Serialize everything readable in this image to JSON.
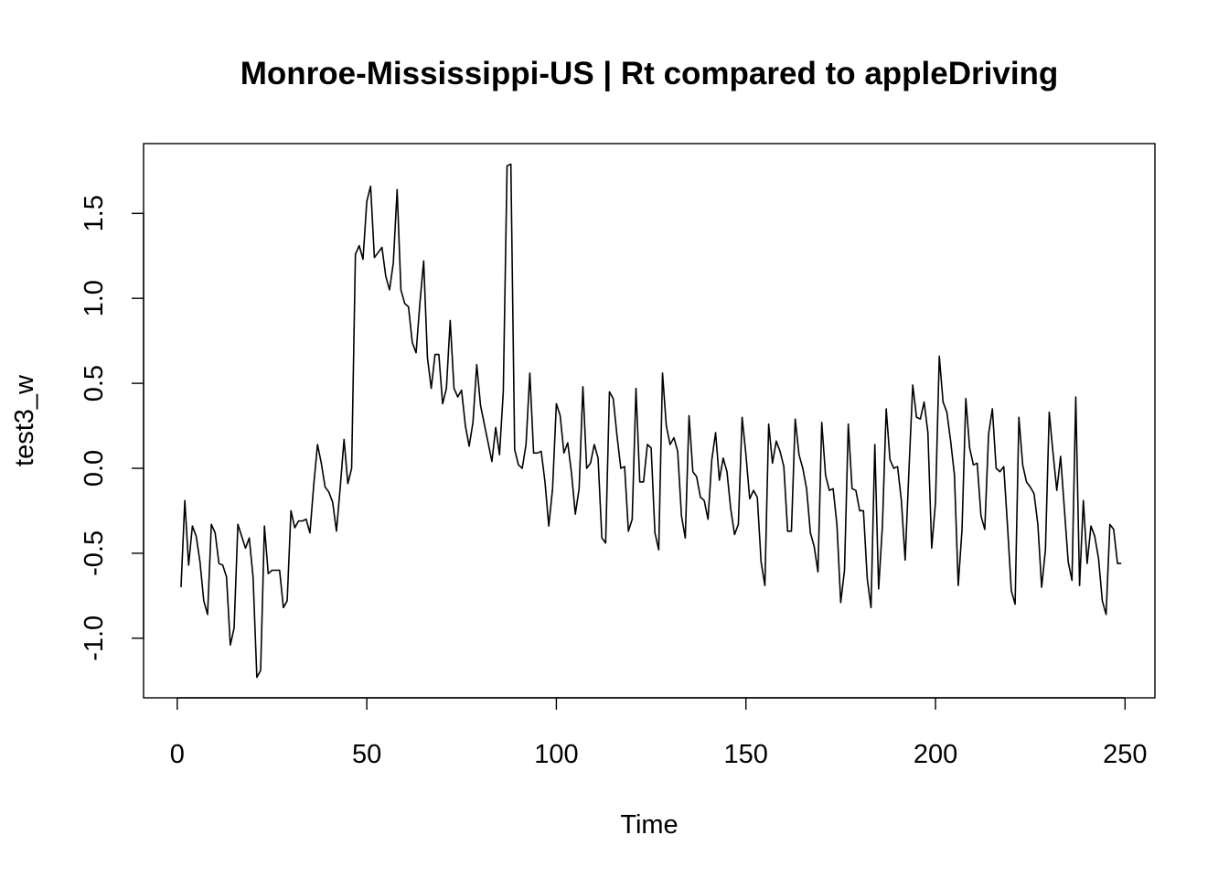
{
  "chart_data": {
    "type": "line",
    "title": "Monroe-Mississippi-US | Rt compared to appleDriving",
    "xlabel": "Time",
    "ylabel": "test3_w",
    "xlim": [
      1,
      248
    ],
    "ylim": [
      -1.23,
      1.79
    ],
    "x_ticks": [
      0,
      50,
      100,
      150,
      200,
      250
    ],
    "y_ticks": [
      -1.0,
      -0.5,
      0.0,
      0.5,
      1.0,
      1.5
    ],
    "x_tick_labels": [
      "0",
      "50",
      "100",
      "150",
      "200",
      "250"
    ],
    "y_tick_labels": [
      "-1.0",
      "-0.5",
      "0.0",
      "0.5",
      "1.0",
      "1.5"
    ],
    "grid": false,
    "series": [
      {
        "x_start": 1,
        "values": [
          -0.7,
          -0.19,
          -0.57,
          -0.34,
          -0.4,
          -0.55,
          -0.78,
          -0.86,
          -0.33,
          -0.38,
          -0.56,
          -0.57,
          -0.64,
          -1.04,
          -0.94,
          -0.33,
          -0.4,
          -0.47,
          -0.41,
          -0.64,
          -1.23,
          -1.19,
          -0.34,
          -0.62,
          -0.6,
          -0.6,
          -0.6,
          -0.82,
          -0.78,
          -0.25,
          -0.35,
          -0.31,
          -0.31,
          -0.3,
          -0.38,
          -0.1,
          0.14,
          0.03,
          -0.11,
          -0.14,
          -0.2,
          -0.37,
          -0.11,
          0.17,
          -0.09,
          0.0,
          1.26,
          1.31,
          1.23,
          1.57,
          1.66,
          1.24,
          1.27,
          1.3,
          1.13,
          1.05,
          1.21,
          1.64,
          1.05,
          0.97,
          0.95,
          0.74,
          0.68,
          0.97,
          1.22,
          0.65,
          0.47,
          0.67,
          0.67,
          0.38,
          0.47,
          0.87,
          0.47,
          0.42,
          0.46,
          0.25,
          0.13,
          0.27,
          0.61,
          0.37,
          0.26,
          0.15,
          0.04,
          0.24,
          0.08,
          0.45,
          1.78,
          1.79,
          0.11,
          0.02,
          0.0,
          0.14,
          0.56,
          0.09,
          0.09,
          0.1,
          -0.08,
          -0.34,
          -0.12,
          0.38,
          0.31,
          0.09,
          0.15,
          -0.03,
          -0.27,
          -0.12,
          0.48,
          0.0,
          0.03,
          0.14,
          0.06,
          -0.41,
          -0.44,
          0.45,
          0.41,
          0.19,
          0.0,
          0.01,
          -0.37,
          -0.3,
          0.47,
          -0.08,
          -0.08,
          0.14,
          0.12,
          -0.38,
          -0.48,
          0.56,
          0.25,
          0.14,
          0.18,
          0.1,
          -0.28,
          -0.41,
          0.31,
          -0.02,
          -0.05,
          -0.17,
          -0.19,
          -0.3,
          0.05,
          0.21,
          -0.07,
          0.06,
          -0.02,
          -0.24,
          -0.39,
          -0.33,
          0.3,
          0.08,
          -0.18,
          -0.13,
          -0.17,
          -0.55,
          -0.69,
          0.26,
          0.03,
          0.16,
          0.1,
          0.01,
          -0.37,
          -0.37,
          0.29,
          0.08,
          0.0,
          -0.12,
          -0.38,
          -0.46,
          -0.61,
          0.27,
          -0.04,
          -0.13,
          -0.12,
          -0.33,
          -0.79,
          -0.6,
          0.26,
          -0.12,
          -0.13,
          -0.25,
          -0.25,
          -0.65,
          -0.82,
          0.14,
          -0.71,
          -0.34,
          0.35,
          0.05,
          0.0,
          0.01,
          -0.19,
          -0.54,
          -0.01,
          0.49,
          0.3,
          0.29,
          0.39,
          0.21,
          -0.47,
          -0.2,
          0.66,
          0.39,
          0.33,
          0.16,
          -0.04,
          -0.69,
          -0.36,
          0.41,
          0.12,
          0.02,
          0.03,
          -0.28,
          -0.36,
          0.2,
          0.35,
          0.0,
          -0.02,
          0.01,
          -0.34,
          -0.72,
          -0.8,
          0.3,
          0.02,
          -0.08,
          -0.11,
          -0.15,
          -0.33,
          -0.7,
          -0.48,
          0.33,
          0.09,
          -0.13,
          0.07,
          -0.24,
          -0.55,
          -0.66,
          0.42,
          -0.69,
          -0.19,
          -0.56,
          -0.34,
          -0.4,
          -0.53,
          -0.78,
          -0.86,
          -0.33,
          -0.36,
          -0.56,
          -0.56
        ]
      }
    ]
  }
}
